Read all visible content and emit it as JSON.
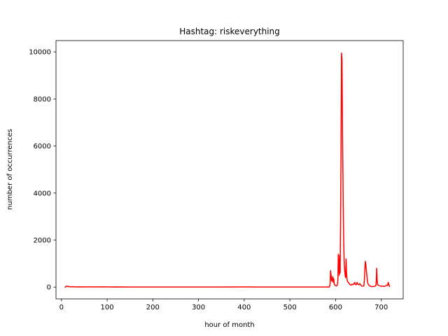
{
  "chart_data": {
    "type": "line",
    "title": "Hashtag: riskeverything",
    "xlabel": "hour of month",
    "ylabel": "number of occurrences",
    "xlim": [
      -12,
      748
    ],
    "ylim": [
      -500,
      10480
    ],
    "xticks": [
      0,
      100,
      200,
      300,
      400,
      500,
      600,
      700
    ],
    "yticks": [
      0,
      2000,
      4000,
      6000,
      8000,
      10000
    ],
    "grid": false,
    "legend": "none",
    "series": [
      {
        "color": "#ff0000",
        "points": [
          [
            8,
            0
          ],
          [
            10,
            30
          ],
          [
            12,
            50
          ],
          [
            14,
            20
          ],
          [
            17,
            30
          ],
          [
            20,
            10
          ],
          [
            25,
            20
          ],
          [
            30,
            10
          ],
          [
            40,
            15
          ],
          [
            50,
            10
          ],
          [
            60,
            12
          ],
          [
            70,
            8
          ],
          [
            80,
            10
          ],
          [
            90,
            15
          ],
          [
            100,
            8
          ],
          [
            110,
            5
          ],
          [
            120,
            10
          ],
          [
            150,
            5
          ],
          [
            200,
            5
          ],
          [
            250,
            5
          ],
          [
            300,
            5
          ],
          [
            350,
            5
          ],
          [
            400,
            8
          ],
          [
            430,
            5
          ],
          [
            500,
            5
          ],
          [
            550,
            5
          ],
          [
            586,
            5
          ],
          [
            588,
            100
          ],
          [
            589,
            700
          ],
          [
            590,
            550
          ],
          [
            591,
            300
          ],
          [
            592,
            250
          ],
          [
            593,
            350
          ],
          [
            594,
            450
          ],
          [
            595,
            200
          ],
          [
            596,
            350
          ],
          [
            597,
            150
          ],
          [
            598,
            100
          ],
          [
            599,
            80
          ],
          [
            600,
            60
          ],
          [
            602,
            50
          ],
          [
            604,
            100
          ],
          [
            605,
            300
          ],
          [
            606,
            1400
          ],
          [
            607,
            900
          ],
          [
            608,
            500
          ],
          [
            609,
            1350
          ],
          [
            610,
            600
          ],
          [
            611,
            3000
          ],
          [
            612,
            6000
          ],
          [
            613,
            9950
          ],
          [
            614,
            9700
          ],
          [
            615,
            7000
          ],
          [
            616,
            5000
          ],
          [
            617,
            3000
          ],
          [
            618,
            1700
          ],
          [
            619,
            1000
          ],
          [
            620,
            700
          ],
          [
            621,
            500
          ],
          [
            622,
            400
          ],
          [
            623,
            1200
          ],
          [
            624,
            600
          ],
          [
            625,
            350
          ],
          [
            626,
            250
          ],
          [
            628,
            200
          ],
          [
            630,
            150
          ],
          [
            632,
            100
          ],
          [
            634,
            80
          ],
          [
            636,
            120
          ],
          [
            638,
            100
          ],
          [
            640,
            150
          ],
          [
            642,
            200
          ],
          [
            643,
            120
          ],
          [
            645,
            100
          ],
          [
            647,
            200
          ],
          [
            649,
            120
          ],
          [
            651,
            100
          ],
          [
            653,
            150
          ],
          [
            655,
            100
          ],
          [
            657,
            50
          ],
          [
            660,
            40
          ],
          [
            662,
            60
          ],
          [
            663,
            300
          ],
          [
            664,
            700
          ],
          [
            665,
            1100
          ],
          [
            666,
            1000
          ],
          [
            667,
            800
          ],
          [
            668,
            600
          ],
          [
            669,
            400
          ],
          [
            670,
            200
          ],
          [
            672,
            100
          ],
          [
            675,
            50
          ],
          [
            678,
            30
          ],
          [
            680,
            20
          ],
          [
            683,
            30
          ],
          [
            686,
            40
          ],
          [
            688,
            60
          ],
          [
            689,
            200
          ],
          [
            690,
            800
          ],
          [
            691,
            300
          ],
          [
            692,
            100
          ],
          [
            694,
            80
          ],
          [
            697,
            50
          ],
          [
            700,
            40
          ],
          [
            703,
            50
          ],
          [
            706,
            30
          ],
          [
            709,
            50
          ],
          [
            712,
            80
          ],
          [
            714,
            70
          ],
          [
            715,
            200
          ],
          [
            716,
            150
          ],
          [
            717,
            100
          ],
          [
            718,
            30
          ]
        ]
      }
    ]
  }
}
